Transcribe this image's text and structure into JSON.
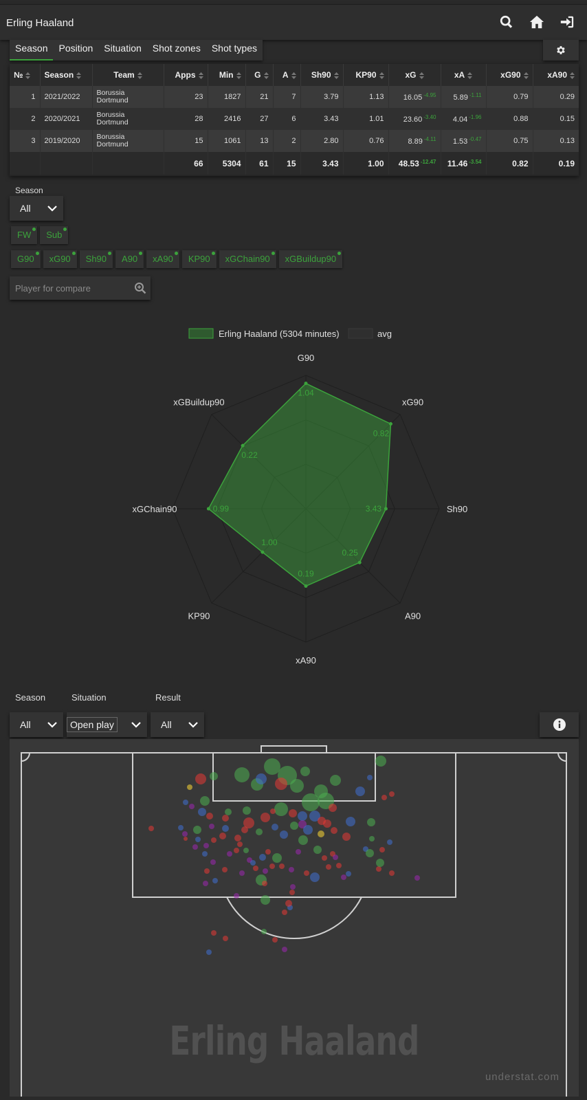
{
  "header": {
    "title": "Erling Haaland"
  },
  "tabs": [
    "Season",
    "Position",
    "Situation",
    "Shot zones",
    "Shot types"
  ],
  "table": {
    "columns": [
      "№",
      "Season",
      "Team",
      "Apps",
      "Min",
      "G",
      "A",
      "Sh90",
      "KP90",
      "xG",
      "xA",
      "xG90",
      "xA90"
    ],
    "rows": [
      {
        "no": "1",
        "season": "2021/2022",
        "team1": "Borussia",
        "team2": "Dortmund",
        "apps": "23",
        "min": "1827",
        "g": "21",
        "a": "7",
        "sh90": "3.79",
        "kp90": "1.13",
        "xg": "16.05",
        "xg_diff": "-4.95",
        "xa": "5.89",
        "xa_diff": "-1.11",
        "xg90": "0.79",
        "xa90": "0.29"
      },
      {
        "no": "2",
        "season": "2020/2021",
        "team1": "Borussia",
        "team2": "Dortmund",
        "apps": "28",
        "min": "2416",
        "g": "27",
        "a": "6",
        "sh90": "3.43",
        "kp90": "1.01",
        "xg": "23.60",
        "xg_diff": "-3.40",
        "xa": "4.04",
        "xa_diff": "-1.96",
        "xg90": "0.88",
        "xa90": "0.15"
      },
      {
        "no": "3",
        "season": "2019/2020",
        "team1": "Borussia",
        "team2": "Dortmund",
        "apps": "15",
        "min": "1061",
        "g": "13",
        "a": "2",
        "sh90": "2.80",
        "kp90": "0.76",
        "xg": "8.89",
        "xg_diff": "-4.11",
        "xa": "1.53",
        "xa_diff": "-0.47",
        "xg90": "0.75",
        "xa90": "0.13"
      }
    ],
    "totals": {
      "apps": "66",
      "min": "5304",
      "g": "61",
      "a": "15",
      "sh90": "3.43",
      "kp90": "1.00",
      "xg": "48.53",
      "xg_diff": "-12.47",
      "xa": "11.46",
      "xa_diff": "-3.54",
      "xg90": "0.82",
      "xa90": "0.19"
    }
  },
  "season_filter": {
    "label": "Season",
    "value": "All"
  },
  "position_chips": [
    "FW",
    "Sub"
  ],
  "metric_chips": [
    "G90",
    "xG90",
    "Sh90",
    "A90",
    "xA90",
    "KP90",
    "xGChain90",
    "xGBuildup90"
  ],
  "compare": {
    "placeholder": "Player for compare"
  },
  "chart_data": {
    "type": "radar",
    "legend": [
      {
        "name": "Erling Haaland (5304 minutes)",
        "color": "#3ca33c"
      },
      {
        "name": "avg",
        "color": "#2f2f2f"
      }
    ],
    "axes": [
      "G90",
      "xG90",
      "Sh90",
      "A90",
      "xA90",
      "KP90",
      "xGChain90",
      "xGBuildup90"
    ],
    "values": [
      1.04,
      0.82,
      3.43,
      0.25,
      0.19,
      1.0,
      0.99,
      0.22
    ],
    "labels": [
      "1.04",
      "0.82",
      "3.43",
      "0.25",
      "0.19",
      "1.00",
      "0.99",
      "0.22"
    ],
    "relative_radius": [
      0.94,
      0.9,
      0.6,
      0.57,
      0.58,
      0.46,
      0.73,
      0.67
    ]
  },
  "shot_filters": {
    "season": {
      "label": "Season",
      "value": "All"
    },
    "situation": {
      "label": "Situation",
      "value": "Open play"
    },
    "result": {
      "label": "Result",
      "value": "All"
    }
  },
  "shot_map": {
    "watermark": "Erling Haaland",
    "brand": "understat.com",
    "result_colors": {
      "goal": "#4caf50",
      "missed": "#e53935",
      "saved": "#3f6fd1",
      "blocked": "#9c27b0",
      "post": "#fdd835"
    }
  }
}
